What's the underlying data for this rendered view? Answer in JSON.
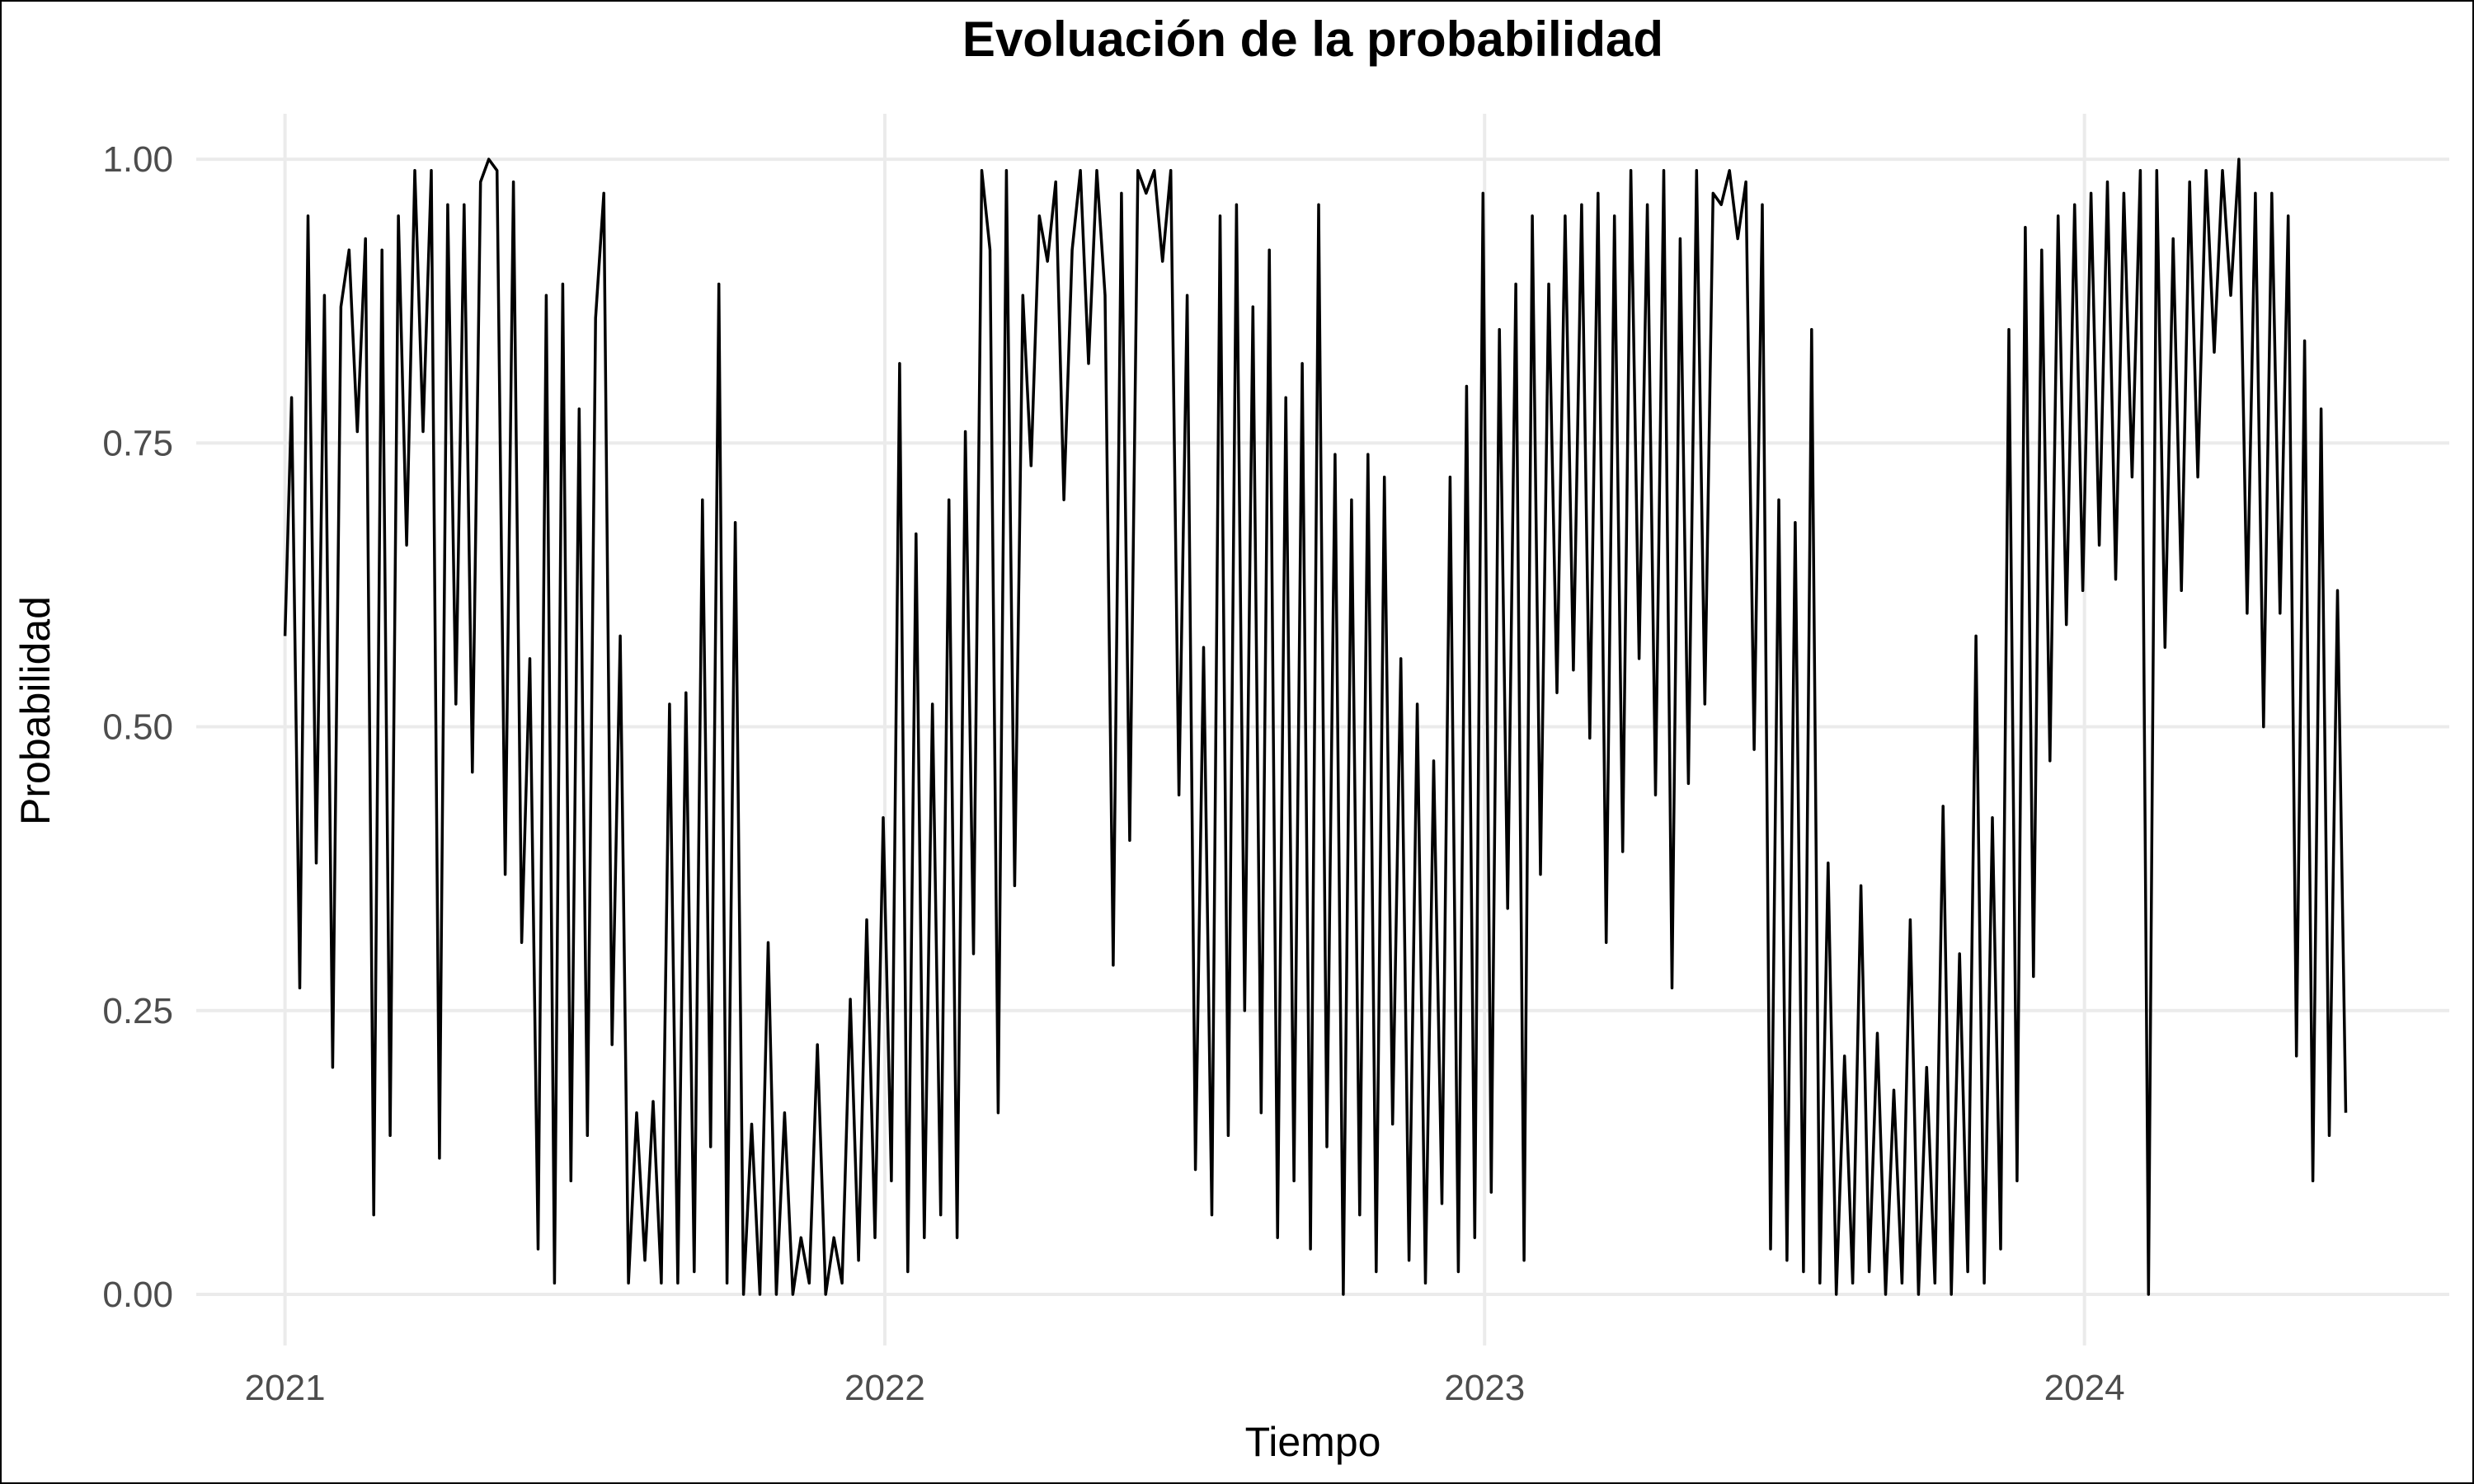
{
  "chart_data": {
    "type": "line",
    "title": "Evoluación de la probabilidad",
    "xlabel": "Tiempo",
    "ylabel": "Probabilidad",
    "x_ticks": [
      "2021",
      "2022",
      "2023",
      "2024"
    ],
    "y_ticks": [
      "0.00",
      "0.25",
      "0.50",
      "0.75",
      "1.00"
    ],
    "xlim": [
      "2020-11-08",
      "2024-08-10"
    ],
    "ylim": [
      -0.045,
      1.04
    ],
    "grid": true,
    "legend": "none",
    "colors": {
      "line": "#000000",
      "grid": "#ebebeb",
      "tick_text": "#4d4d4d"
    },
    "series": [
      {
        "x": [
          "2021-01-01",
          "2021-01-05",
          "2021-01-10",
          "2021-01-15",
          "2021-01-20",
          "2021-01-25",
          "2021-01-30",
          "2021-02-04",
          "2021-02-09",
          "2021-02-14",
          "2021-02-19",
          "2021-02-24",
          "2021-03-01",
          "2021-03-06",
          "2021-03-11",
          "2021-03-16",
          "2021-03-21",
          "2021-03-26",
          "2021-03-31",
          "2021-04-05",
          "2021-04-10",
          "2021-04-15",
          "2021-04-20",
          "2021-04-25",
          "2021-04-30",
          "2021-05-05",
          "2021-05-10",
          "2021-05-15",
          "2021-05-20",
          "2021-05-25",
          "2021-05-30",
          "2021-06-04",
          "2021-06-09",
          "2021-06-14",
          "2021-06-19",
          "2021-06-24",
          "2021-06-29",
          "2021-07-04",
          "2021-07-09",
          "2021-07-14",
          "2021-07-19",
          "2021-07-24",
          "2021-07-29",
          "2021-08-03",
          "2021-08-08",
          "2021-08-13",
          "2021-08-18",
          "2021-08-23",
          "2021-08-28",
          "2021-09-02",
          "2021-09-07",
          "2021-09-12",
          "2021-09-17",
          "2021-09-22",
          "2021-09-27",
          "2021-10-02",
          "2021-10-07",
          "2021-10-12",
          "2021-10-17",
          "2021-10-22",
          "2021-10-27",
          "2021-11-01",
          "2021-11-06",
          "2021-11-11",
          "2021-11-16",
          "2021-11-21",
          "2021-11-26",
          "2021-12-01",
          "2021-12-06",
          "2021-12-11",
          "2021-12-16",
          "2021-12-21",
          "2021-12-26",
          "2021-12-31",
          "2022-01-05",
          "2022-01-10",
          "2022-01-15",
          "2022-01-20",
          "2022-01-25",
          "2022-01-30",
          "2022-02-04",
          "2022-02-09",
          "2022-02-14",
          "2022-02-19",
          "2022-02-24",
          "2022-03-01",
          "2022-03-06",
          "2022-03-11",
          "2022-03-16",
          "2022-03-21",
          "2022-03-26",
          "2022-03-31",
          "2022-04-05",
          "2022-04-10",
          "2022-04-15",
          "2022-04-20",
          "2022-04-25",
          "2022-04-30",
          "2022-05-05",
          "2022-05-10",
          "2022-05-15",
          "2022-05-20",
          "2022-05-25",
          "2022-05-30",
          "2022-06-04",
          "2022-06-09",
          "2022-06-14",
          "2022-06-19",
          "2022-06-24",
          "2022-06-29",
          "2022-07-04",
          "2022-07-09",
          "2022-07-14",
          "2022-07-19",
          "2022-07-24",
          "2022-07-29",
          "2022-08-03",
          "2022-08-08",
          "2022-08-13",
          "2022-08-18",
          "2022-08-23",
          "2022-08-28",
          "2022-09-02",
          "2022-09-07",
          "2022-09-12",
          "2022-09-17",
          "2022-09-22",
          "2022-09-27",
          "2022-10-02",
          "2022-10-07",
          "2022-10-12",
          "2022-10-17",
          "2022-10-22",
          "2022-10-27",
          "2022-11-01",
          "2022-11-06",
          "2022-11-11",
          "2022-11-16",
          "2022-11-21",
          "2022-11-26",
          "2022-12-01",
          "2022-12-06",
          "2022-12-11",
          "2022-12-16",
          "2022-12-21",
          "2022-12-26",
          "2022-12-31",
          "2023-01-05",
          "2023-01-10",
          "2023-01-15",
          "2023-01-20",
          "2023-01-25",
          "2023-01-30",
          "2023-02-04",
          "2023-02-09",
          "2023-02-14",
          "2023-02-19",
          "2023-02-24",
          "2023-03-01",
          "2023-03-06",
          "2023-03-11",
          "2023-03-16",
          "2023-03-21",
          "2023-03-26",
          "2023-03-31",
          "2023-04-05",
          "2023-04-10",
          "2023-04-15",
          "2023-04-20",
          "2023-04-25",
          "2023-04-30",
          "2023-05-05",
          "2023-05-10",
          "2023-05-15",
          "2023-05-20",
          "2023-05-25",
          "2023-05-30",
          "2023-06-04",
          "2023-06-09",
          "2023-06-14",
          "2023-06-19",
          "2023-06-24",
          "2023-06-29",
          "2023-07-04",
          "2023-07-09",
          "2023-07-14",
          "2023-07-19",
          "2023-07-24",
          "2023-07-29",
          "2023-08-03",
          "2023-08-08",
          "2023-08-13",
          "2023-08-18",
          "2023-08-23",
          "2023-08-28",
          "2023-09-02",
          "2023-09-07",
          "2023-09-12",
          "2023-09-17",
          "2023-09-22",
          "2023-09-27",
          "2023-10-02",
          "2023-10-07",
          "2023-10-12",
          "2023-10-17",
          "2023-10-22",
          "2023-10-27",
          "2023-11-01",
          "2023-11-06",
          "2023-11-11",
          "2023-11-16",
          "2023-11-21",
          "2023-11-26",
          "2023-12-01",
          "2023-12-06",
          "2023-12-11",
          "2023-12-16",
          "2023-12-21",
          "2023-12-26",
          "2023-12-31",
          "2024-01-05",
          "2024-01-10",
          "2024-01-15",
          "2024-01-20",
          "2024-01-25",
          "2024-01-30",
          "2024-02-04",
          "2024-02-09",
          "2024-02-14",
          "2024-02-19",
          "2024-02-24",
          "2024-02-29",
          "2024-03-05",
          "2024-03-10",
          "2024-03-15",
          "2024-03-20",
          "2024-03-25",
          "2024-03-30",
          "2024-04-04",
          "2024-04-09",
          "2024-04-14",
          "2024-04-19",
          "2024-04-24",
          "2024-04-29",
          "2024-05-04",
          "2024-05-09",
          "2024-05-14",
          "2024-05-19",
          "2024-05-24",
          "2024-05-29",
          "2024-06-03",
          "2024-06-08"
        ],
        "values": [
          0.58,
          0.79,
          0.27,
          0.95,
          0.38,
          0.88,
          0.2,
          0.87,
          0.92,
          0.76,
          0.93,
          0.07,
          0.92,
          0.14,
          0.95,
          0.66,
          0.99,
          0.76,
          0.99,
          0.12,
          0.96,
          0.52,
          0.96,
          0.46,
          0.98,
          1.0,
          0.99,
          0.37,
          0.98,
          0.31,
          0.56,
          0.04,
          0.88,
          0.01,
          0.89,
          0.1,
          0.78,
          0.14,
          0.86,
          0.97,
          0.22,
          0.58,
          0.01,
          0.16,
          0.03,
          0.17,
          0.01,
          0.52,
          0.01,
          0.53,
          0.02,
          0.7,
          0.13,
          0.89,
          0.01,
          0.68,
          0.0,
          0.15,
          0.0,
          0.31,
          0.0,
          0.16,
          0.0,
          0.05,
          0.01,
          0.22,
          0.0,
          0.05,
          0.01,
          0.26,
          0.03,
          0.33,
          0.05,
          0.42,
          0.1,
          0.82,
          0.02,
          0.67,
          0.05,
          0.52,
          0.07,
          0.7,
          0.05,
          0.76,
          0.3,
          0.99,
          0.92,
          0.16,
          0.99,
          0.36,
          0.88,
          0.73,
          0.95,
          0.91,
          0.98,
          0.7,
          0.92,
          0.99,
          0.82,
          0.99,
          0.88,
          0.29,
          0.97,
          0.4,
          0.99,
          0.97,
          0.99,
          0.91,
          0.99,
          0.44,
          0.88,
          0.11,
          0.57,
          0.07,
          0.95,
          0.14,
          0.96,
          0.25,
          0.87,
          0.16,
          0.92,
          0.05,
          0.79,
          0.1,
          0.82,
          0.04,
          0.96,
          0.13,
          0.74,
          0.0,
          0.7,
          0.07,
          0.74,
          0.02,
          0.72,
          0.15,
          0.56,
          0.03,
          0.52,
          0.01,
          0.47,
          0.08,
          0.72,
          0.02,
          0.8,
          0.05,
          0.97,
          0.09,
          0.85,
          0.34,
          0.89,
          0.03,
          0.95,
          0.37,
          0.89,
          0.53,
          0.95,
          0.55,
          0.96,
          0.49,
          0.97,
          0.31,
          0.95,
          0.39,
          0.99,
          0.56,
          0.96,
          0.44,
          0.99,
          0.27,
          0.93,
          0.45,
          0.99,
          0.52,
          0.97,
          0.96,
          0.99,
          0.93,
          0.98,
          0.48,
          0.96,
          0.04,
          0.7,
          0.03,
          0.68,
          0.02,
          0.85,
          0.01,
          0.38,
          0.0,
          0.21,
          0.01,
          0.36,
          0.02,
          0.23,
          0.0,
          0.18,
          0.01,
          0.33,
          0.0,
          0.2,
          0.01,
          0.43,
          0.0,
          0.3,
          0.02,
          0.58,
          0.01,
          0.42,
          0.04,
          0.85,
          0.1,
          0.94,
          0.28,
          0.92,
          0.47,
          0.95,
          0.59,
          0.96,
          0.62,
          0.97,
          0.66,
          0.98,
          0.63,
          0.97,
          0.72,
          0.99,
          0.0,
          0.99,
          0.57,
          0.93,
          0.62,
          0.98,
          0.72,
          0.99,
          0.83,
          0.99,
          0.88,
          1.0,
          0.6,
          0.97,
          0.5,
          0.97,
          0.6,
          0.95,
          0.21,
          0.84,
          0.1,
          0.78,
          0.14,
          0.62,
          0.16
        ]
      }
    ]
  }
}
